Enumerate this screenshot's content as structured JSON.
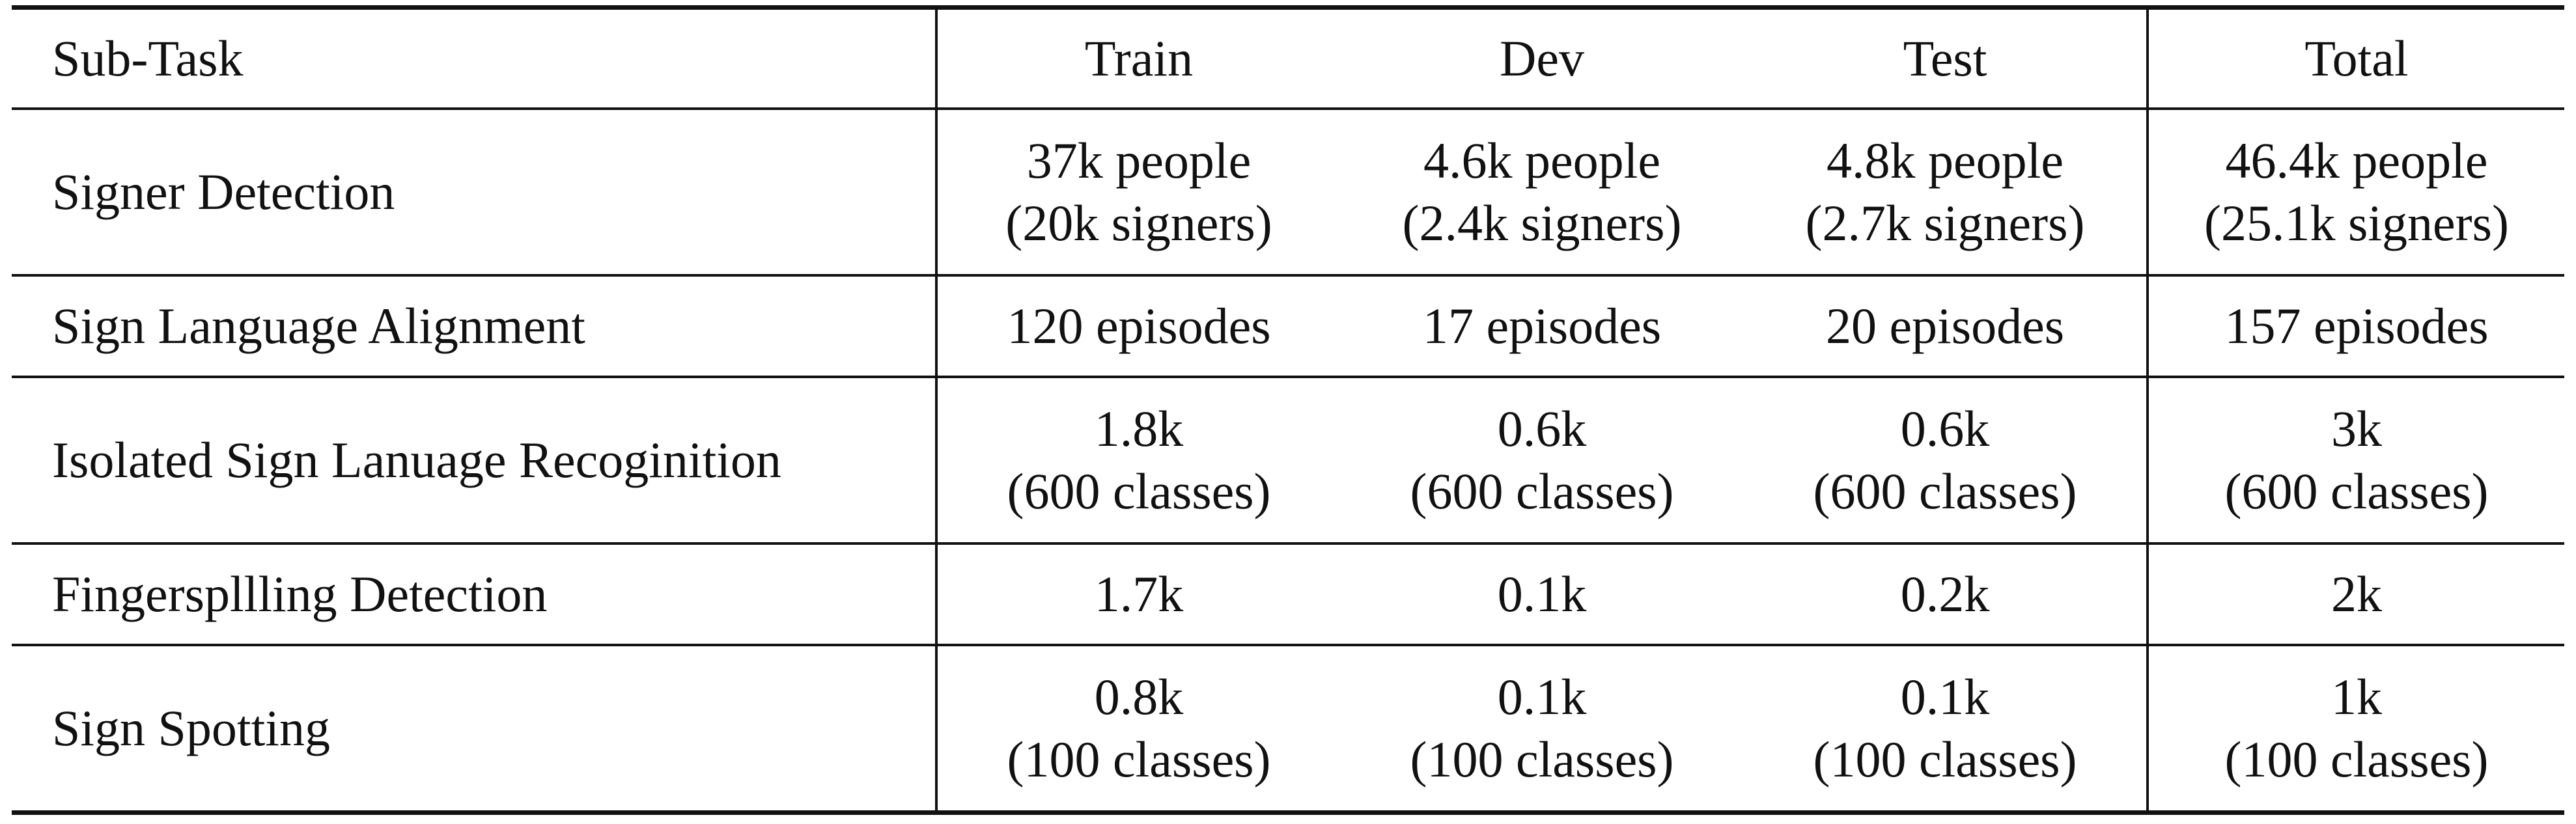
{
  "table": {
    "headers": [
      "Sub-Task",
      "Train",
      "Dev",
      "Test",
      "Total"
    ],
    "rows": [
      {
        "task": "Signer Detection",
        "cells": [
          [
            "37k people",
            "(20k signers)"
          ],
          [
            "4.6k people",
            "(2.4k signers)"
          ],
          [
            "4.8k people",
            "(2.7k signers)"
          ],
          [
            "46.4k people",
            "(25.1k signers)"
          ]
        ]
      },
      {
        "task": "Sign Language Alignment",
        "cells": [
          [
            "120 episodes"
          ],
          [
            "17 episodes"
          ],
          [
            "20 episodes"
          ],
          [
            "157 episodes"
          ]
        ]
      },
      {
        "task": "Isolated Sign Lanuage Recoginition",
        "cells": [
          [
            "1.8k",
            "(600 classes)"
          ],
          [
            "0.6k",
            "(600 classes)"
          ],
          [
            "0.6k",
            "(600 classes)"
          ],
          [
            "3k",
            "(600 classes)"
          ]
        ]
      },
      {
        "task": "Fingerspllling Detection",
        "cells": [
          [
            "1.7k"
          ],
          [
            "0.1k"
          ],
          [
            "0.2k"
          ],
          [
            "2k"
          ]
        ]
      },
      {
        "task": "Sign Spotting",
        "cells": [
          [
            "0.8k",
            "(100 classes)"
          ],
          [
            "0.1k",
            "(100 classes)"
          ],
          [
            "0.1k",
            "(100 classes)"
          ],
          [
            "1k",
            "(100 classes)"
          ]
        ]
      }
    ]
  }
}
